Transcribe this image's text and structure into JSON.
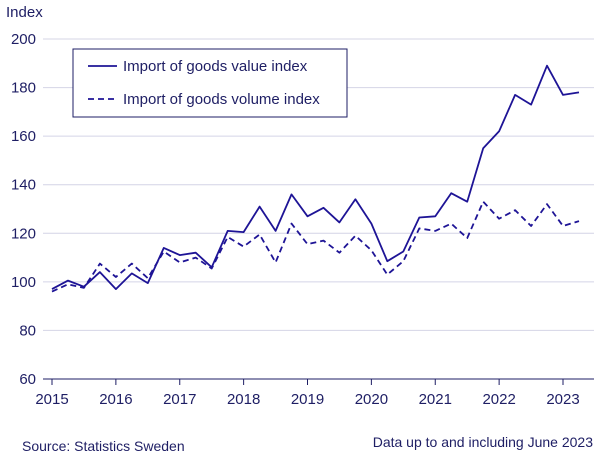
{
  "colors": {
    "series": "#1e1496",
    "text": "#1e1e64",
    "grid": "#d4d4e6",
    "axis": "#1e1e64"
  },
  "footer": {
    "source": "Source: Statistics Sweden",
    "note": "Data up to and including June 2023"
  },
  "chart_data": {
    "type": "line",
    "title": "",
    "xlabel": "",
    "ylabel": "Index",
    "ylim": [
      60,
      200
    ],
    "yticks": [
      60,
      80,
      100,
      120,
      140,
      160,
      180,
      200
    ],
    "xlim": [
      2015.0,
      2023.5
    ],
    "xticks": [
      2015,
      2016,
      2017,
      2018,
      2019,
      2020,
      2021,
      2022,
      2023
    ],
    "grid": "horizontal",
    "legend_position": "top-left",
    "x": [
      2015.0,
      2015.25,
      2015.5,
      2015.75,
      2016.0,
      2016.25,
      2016.5,
      2016.75,
      2017.0,
      2017.25,
      2017.5,
      2017.75,
      2018.0,
      2018.25,
      2018.5,
      2018.75,
      2019.0,
      2019.25,
      2019.5,
      2019.75,
      2020.0,
      2020.25,
      2020.5,
      2020.75,
      2021.0,
      2021.25,
      2021.5,
      2021.75,
      2022.0,
      2022.25,
      2022.5,
      2022.75,
      2023.0,
      2023.25
    ],
    "series": [
      {
        "name": "Import of goods value index",
        "style": "solid",
        "values": [
          97,
          100.5,
          98,
          104,
          97,
          103.5,
          99.5,
          114,
          111,
          112,
          106,
          121,
          120.5,
          131,
          121,
          136,
          127,
          130.5,
          124.5,
          134,
          124,
          108.5,
          112.5,
          126.5,
          127,
          136.5,
          133,
          155,
          162,
          177,
          173,
          189,
          177,
          178
        ]
      },
      {
        "name": "Import of goods volume index",
        "style": "dashed",
        "values": [
          96,
          99,
          97.5,
          107.5,
          102,
          107.5,
          101.5,
          112.5,
          108,
          110,
          105.5,
          118.5,
          114.5,
          119.5,
          108,
          124,
          115.5,
          117,
          112,
          119,
          113,
          103,
          108.5,
          122,
          121,
          124,
          118,
          133,
          126,
          129.5,
          123,
          132,
          123,
          125
        ]
      }
    ]
  }
}
